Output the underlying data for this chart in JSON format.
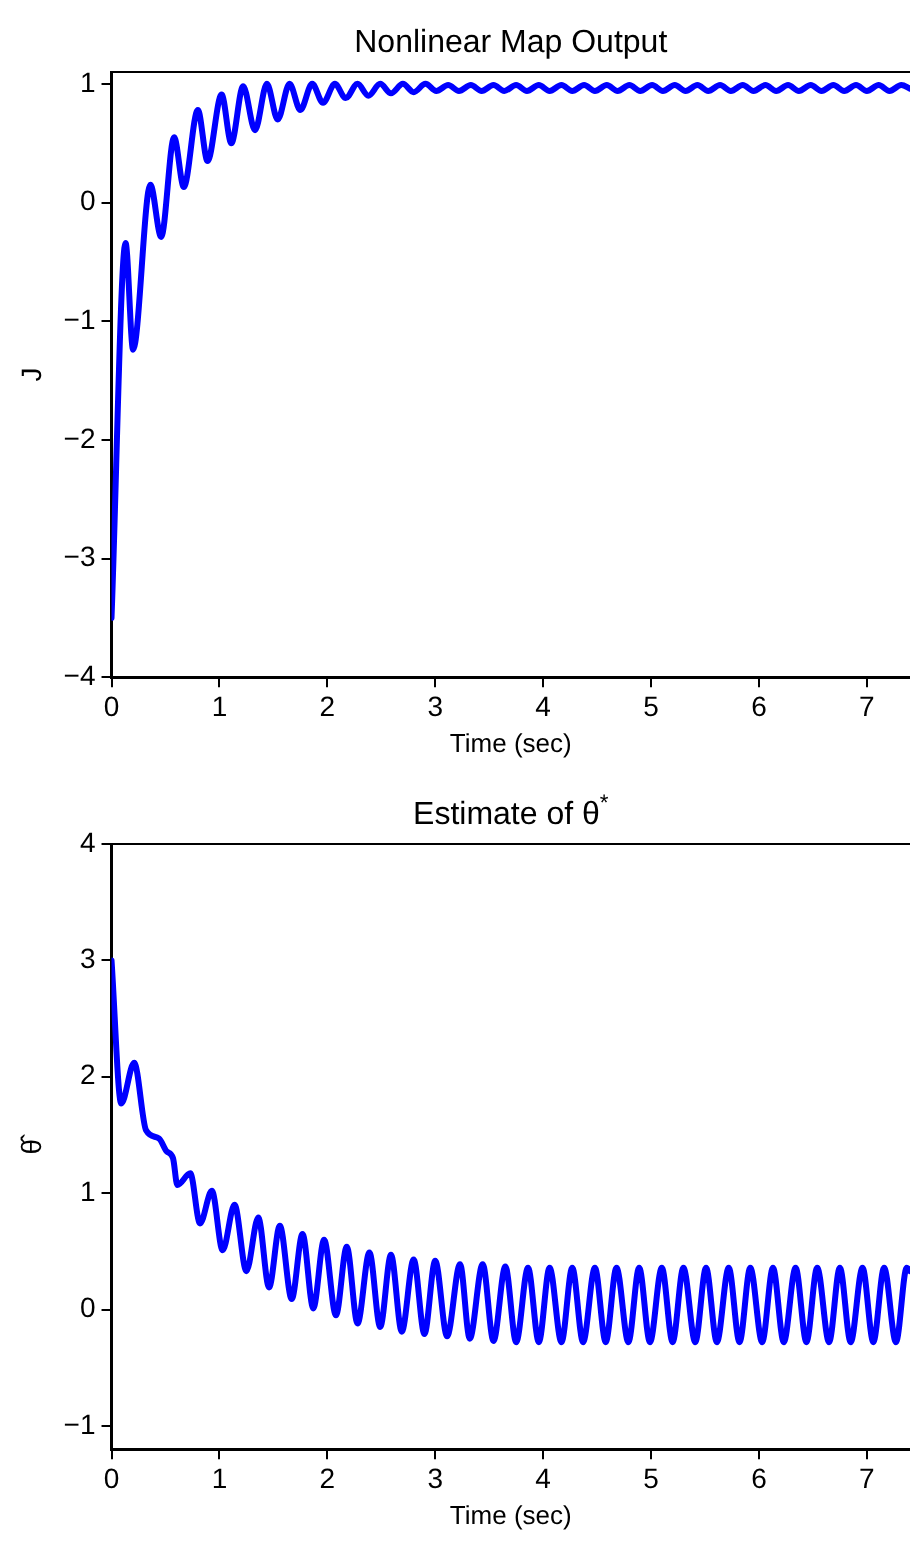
{
  "chart_data": [
    {
      "type": "line",
      "title": "Nonlinear Map Output",
      "xlabel": "Time (sec)",
      "ylabel": "J",
      "xlim": [
        0,
        7.4
      ],
      "xticks": [
        0,
        1,
        2,
        3,
        4,
        5,
        6,
        7
      ],
      "ylim": [
        -4,
        1.1
      ],
      "yticks": [
        -4,
        -3,
        -2,
        -1,
        0,
        1
      ],
      "grid": false,
      "legend": false,
      "marker": "none",
      "line_style": "solid",
      "series": [
        {
          "color": "#0000ff",
          "x": [
            0,
            0.13,
            0.2,
            0.36,
            0.46,
            0.58,
            0.67,
            0.8,
            0.89,
            1.02,
            1.11,
            1.22,
            1.33,
            1.44,
            1.54,
            1.65,
            1.75,
            1.86,
            1.96,
            2.07,
            2.17,
            2.28,
            2.38,
            2.49,
            2.59,
            2.7,
            2.8,
            2.91,
            3.01,
            3.12,
            3.22,
            3.33,
            3.43,
            3.54,
            3.64,
            3.75,
            3.85,
            3.96,
            4.06,
            4.17,
            4.27,
            4.38,
            4.48,
            4.59,
            4.69,
            4.8,
            4.9,
            5.01,
            5.11,
            5.22,
            5.32,
            5.43,
            5.53,
            5.64,
            5.74,
            5.85,
            5.95,
            6.06,
            6.16,
            6.27,
            6.37,
            6.48,
            6.58,
            6.69,
            6.79,
            6.9,
            7.0,
            7.11,
            7.21,
            7.32,
            7.4
          ],
          "values": [
            -3.5,
            -0.34,
            -1.24,
            0.15,
            -0.29,
            0.55,
            0.13,
            0.78,
            0.35,
            0.91,
            0.5,
            0.98,
            0.61,
            1.0,
            0.7,
            1.0,
            0.78,
            1.0,
            0.84,
            1.0,
            0.88,
            1.0,
            0.9,
            1.0,
            0.92,
            1.0,
            0.93,
            1.0,
            0.94,
            0.99,
            0.94,
            0.99,
            0.94,
            0.99,
            0.94,
            0.99,
            0.94,
            0.99,
            0.94,
            0.99,
            0.94,
            0.99,
            0.94,
            0.99,
            0.94,
            0.99,
            0.94,
            0.99,
            0.94,
            0.99,
            0.94,
            0.99,
            0.94,
            0.99,
            0.94,
            0.99,
            0.94,
            0.99,
            0.94,
            0.99,
            0.94,
            0.99,
            0.94,
            0.99,
            0.94,
            0.99,
            0.94,
            0.99,
            0.94,
            0.99,
            0.96
          ]
        }
      ]
    },
    {
      "type": "line",
      "title": "Estimate of θ$^{*}$",
      "xlabel": "Time (sec)",
      "ylabel": "θ̂",
      "xlim": [
        0,
        7.4
      ],
      "xticks": [
        0,
        1,
        2,
        3,
        4,
        5,
        6,
        7
      ],
      "ylim": [
        -1.2,
        4
      ],
      "yticks": [
        -1,
        0,
        1,
        2,
        3,
        4
      ],
      "grid": false,
      "legend": false,
      "marker": "none",
      "line_style": "solid",
      "series": [
        {
          "color": "#0000ff",
          "x": [
            0,
            0.09,
            0.21,
            0.32,
            0.44,
            0.51,
            0.57,
            0.61,
            0.73,
            0.82,
            0.93,
            1.03,
            1.14,
            1.25,
            1.36,
            1.46,
            1.56,
            1.67,
            1.77,
            1.87,
            1.97,
            2.08,
            2.18,
            2.28,
            2.39,
            2.49,
            2.59,
            2.69,
            2.8,
            2.9,
            3.0,
            3.11,
            3.23,
            3.32,
            3.44,
            3.54,
            3.65,
            3.75,
            3.86,
            3.96,
            4.06,
            4.17,
            4.27,
            4.37,
            4.48,
            4.58,
            4.68,
            4.79,
            4.89,
            4.99,
            5.1,
            5.2,
            5.3,
            5.41,
            5.51,
            5.61,
            5.72,
            5.82,
            5.92,
            6.03,
            6.13,
            6.23,
            6.34,
            6.44,
            6.54,
            6.65,
            6.75,
            6.85,
            6.96,
            7.06,
            7.16,
            7.27,
            7.37,
            7.4
          ],
          "values": [
            3.0,
            1.77,
            2.12,
            1.54,
            1.47,
            1.36,
            1.3,
            1.07,
            1.17,
            0.74,
            1.02,
            0.51,
            0.9,
            0.33,
            0.79,
            0.19,
            0.72,
            0.09,
            0.65,
            0.01,
            0.6,
            -0.05,
            0.54,
            -0.12,
            0.49,
            -0.15,
            0.47,
            -0.19,
            0.43,
            -0.21,
            0.42,
            -0.23,
            0.39,
            -0.25,
            0.39,
            -0.27,
            0.37,
            -0.28,
            0.36,
            -0.28,
            0.36,
            -0.28,
            0.36,
            -0.28,
            0.36,
            -0.28,
            0.36,
            -0.28,
            0.36,
            -0.28,
            0.36,
            -0.28,
            0.36,
            -0.28,
            0.36,
            -0.28,
            0.36,
            -0.28,
            0.36,
            -0.28,
            0.36,
            -0.28,
            0.36,
            -0.28,
            0.36,
            -0.28,
            0.36,
            -0.28,
            0.36,
            -0.28,
            0.36,
            -0.28,
            0.36,
            0.33
          ]
        }
      ]
    }
  ]
}
